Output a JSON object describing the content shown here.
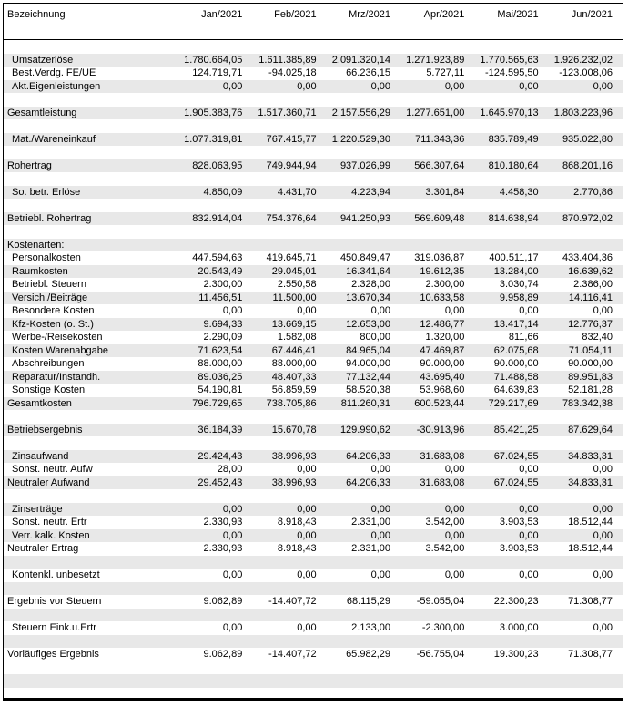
{
  "colors": {
    "row_shade": "#e8e8e8",
    "border": "#000000",
    "text": "#000000",
    "background": "#ffffff"
  },
  "header": {
    "label": "Bezeichnung",
    "months": [
      "Jan/2021",
      "Feb/2021",
      "Mrz/2021",
      "Apr/2021",
      "Mai/2021",
      "Jun/2021"
    ]
  },
  "rows": [
    {
      "blank": true,
      "shaded": false
    },
    {
      "label": "Umsatzerlöse",
      "indent": true,
      "shaded": true,
      "values": [
        "1.780.664,05",
        "1.611.385,89",
        "2.091.320,14",
        "1.271.923,89",
        "1.770.565,63",
        "1.926.232,02"
      ]
    },
    {
      "label": "Best.Verdg. FE/UE",
      "indent": true,
      "shaded": false,
      "values": [
        "124.719,71",
        "-94.025,18",
        "66.236,15",
        "5.727,11",
        "-124.595,50",
        "-123.008,06"
      ]
    },
    {
      "label": "Akt.Eigenleistungen",
      "indent": true,
      "shaded": true,
      "values": [
        "0,00",
        "0,00",
        "0,00",
        "0,00",
        "0,00",
        "0,00"
      ]
    },
    {
      "blank": true,
      "shaded": false
    },
    {
      "label": "Gesamtleistung",
      "indent": false,
      "shaded": true,
      "values": [
        "1.905.383,76",
        "1.517.360,71",
        "2.157.556,29",
        "1.277.651,00",
        "1.645.970,13",
        "1.803.223,96"
      ]
    },
    {
      "blank": true,
      "shaded": false
    },
    {
      "label": "Mat./Wareneinkauf",
      "indent": true,
      "shaded": true,
      "values": [
        "1.077.319,81",
        "767.415,77",
        "1.220.529,30",
        "711.343,36",
        "835.789,49",
        "935.022,80"
      ]
    },
    {
      "blank": true,
      "shaded": false
    },
    {
      "label": "Rohertrag",
      "indent": false,
      "shaded": true,
      "values": [
        "828.063,95",
        "749.944,94",
        "937.026,99",
        "566.307,64",
        "810.180,64",
        "868.201,16"
      ]
    },
    {
      "blank": true,
      "shaded": false
    },
    {
      "label": "So. betr. Erlöse",
      "indent": true,
      "shaded": true,
      "values": [
        "4.850,09",
        "4.431,70",
        "4.223,94",
        "3.301,84",
        "4.458,30",
        "2.770,86"
      ]
    },
    {
      "blank": true,
      "shaded": false
    },
    {
      "label": "Betriebl. Rohertrag",
      "indent": false,
      "shaded": true,
      "values": [
        "832.914,04",
        "754.376,64",
        "941.250,93",
        "569.609,48",
        "814.638,94",
        "870.972,02"
      ]
    },
    {
      "blank": true,
      "shaded": false
    },
    {
      "label": "Kostenarten:",
      "indent": false,
      "shaded": true,
      "values": null
    },
    {
      "label": "Personalkosten",
      "indent": true,
      "shaded": false,
      "values": [
        "447.594,63",
        "419.645,71",
        "450.849,47",
        "319.036,87",
        "400.511,17",
        "433.404,36"
      ]
    },
    {
      "label": "Raumkosten",
      "indent": true,
      "shaded": true,
      "values": [
        "20.543,49",
        "29.045,01",
        "16.341,64",
        "19.612,35",
        "13.284,00",
        "16.639,62"
      ]
    },
    {
      "label": "Betriebl. Steuern",
      "indent": true,
      "shaded": false,
      "values": [
        "2.300,00",
        "2.550,58",
        "2.328,00",
        "2.300,00",
        "3.030,74",
        "2.386,00"
      ]
    },
    {
      "label": "Versich./Beiträge",
      "indent": true,
      "shaded": true,
      "values": [
        "11.456,51",
        "11.500,00",
        "13.670,34",
        "10.633,58",
        "9.958,89",
        "14.116,41"
      ]
    },
    {
      "label": "Besondere Kosten",
      "indent": true,
      "shaded": false,
      "values": [
        "0,00",
        "0,00",
        "0,00",
        "0,00",
        "0,00",
        "0,00"
      ]
    },
    {
      "label": "Kfz-Kosten (o. St.)",
      "indent": true,
      "shaded": true,
      "values": [
        "9.694,33",
        "13.669,15",
        "12.653,00",
        "12.486,77",
        "13.417,14",
        "12.776,37"
      ]
    },
    {
      "label": "Werbe-/Reisekosten",
      "indent": true,
      "shaded": false,
      "values": [
        "2.290,09",
        "1.582,08",
        "800,00",
        "1.320,00",
        "811,66",
        "832,40"
      ]
    },
    {
      "label": "Kosten Warenabgabe",
      "indent": true,
      "shaded": true,
      "values": [
        "71.623,54",
        "67.446,41",
        "84.965,04",
        "47.469,87",
        "62.075,68",
        "71.054,11"
      ]
    },
    {
      "label": "Abschreibungen",
      "indent": true,
      "shaded": false,
      "values": [
        "88.000,00",
        "88.000,00",
        "94.000,00",
        "90.000,00",
        "90.000,00",
        "90.000,00"
      ]
    },
    {
      "label": "Reparatur/Instandh.",
      "indent": true,
      "shaded": true,
      "values": [
        "89.036,25",
        "48.407,33",
        "77.132,44",
        "43.695,40",
        "71.488,58",
        "89.951,83"
      ]
    },
    {
      "label": "Sonstige Kosten",
      "indent": true,
      "shaded": false,
      "values": [
        "54.190,81",
        "56.859,59",
        "58.520,38",
        "53.968,60",
        "64.639,83",
        "52.181,28"
      ]
    },
    {
      "label": "Gesamtkosten",
      "indent": false,
      "shaded": true,
      "values": [
        "796.729,65",
        "738.705,86",
        "811.260,31",
        "600.523,44",
        "729.217,69",
        "783.342,38"
      ]
    },
    {
      "blank": true,
      "shaded": false
    },
    {
      "label": "Betriebsergebnis",
      "indent": false,
      "shaded": true,
      "values": [
        "36.184,39",
        "15.670,78",
        "129.990,62",
        "-30.913,96",
        "85.421,25",
        "87.629,64"
      ]
    },
    {
      "blank": true,
      "shaded": false
    },
    {
      "label": "Zinsaufwand",
      "indent": true,
      "shaded": true,
      "values": [
        "29.424,43",
        "38.996,93",
        "64.206,33",
        "31.683,08",
        "67.024,55",
        "34.833,31"
      ]
    },
    {
      "label": "Sonst. neutr. Aufw",
      "indent": true,
      "shaded": false,
      "values": [
        "28,00",
        "0,00",
        "0,00",
        "0,00",
        "0,00",
        "0,00"
      ]
    },
    {
      "label": "Neutraler Aufwand",
      "indent": false,
      "shaded": true,
      "values": [
        "29.452,43",
        "38.996,93",
        "64.206,33",
        "31.683,08",
        "67.024,55",
        "34.833,31"
      ]
    },
    {
      "blank": true,
      "shaded": false
    },
    {
      "label": "Zinserträge",
      "indent": true,
      "shaded": true,
      "values": [
        "0,00",
        "0,00",
        "0,00",
        "0,00",
        "0,00",
        "0,00"
      ]
    },
    {
      "label": "Sonst. neutr. Ertr",
      "indent": true,
      "shaded": false,
      "values": [
        "2.330,93",
        "8.918,43",
        "2.331,00",
        "3.542,00",
        "3.903,53",
        "18.512,44"
      ]
    },
    {
      "label": "Verr. kalk. Kosten",
      "indent": true,
      "shaded": true,
      "values": [
        "0,00",
        "0,00",
        "0,00",
        "0,00",
        "0,00",
        "0,00"
      ]
    },
    {
      "label": "Neutraler Ertrag",
      "indent": false,
      "shaded": false,
      "values": [
        "2.330,93",
        "8.918,43",
        "2.331,00",
        "3.542,00",
        "3.903,53",
        "18.512,44"
      ]
    },
    {
      "blank": true,
      "shaded": true
    },
    {
      "label": "Kontenkl. unbesetzt",
      "indent": true,
      "shaded": false,
      "values": [
        "0,00",
        "0,00",
        "0,00",
        "0,00",
        "0,00",
        "0,00"
      ]
    },
    {
      "blank": true,
      "shaded": true
    },
    {
      "label": "Ergebnis vor Steuern",
      "indent": false,
      "shaded": false,
      "values": [
        "9.062,89",
        "-14.407,72",
        "68.115,29",
        "-59.055,04",
        "22.300,23",
        "71.308,77"
      ]
    },
    {
      "blank": true,
      "shaded": true
    },
    {
      "label": "Steuern Eink.u.Ertr",
      "indent": true,
      "shaded": false,
      "values": [
        "0,00",
        "0,00",
        "2.133,00",
        "-2.300,00",
        "3.000,00",
        "0,00"
      ]
    },
    {
      "blank": true,
      "shaded": true
    },
    {
      "label": "Vorläufiges Ergebnis",
      "indent": false,
      "shaded": false,
      "values": [
        "9.062,89",
        "-14.407,72",
        "65.982,29",
        "-56.755,04",
        "19.300,23",
        "71.308,77"
      ]
    },
    {
      "blank": true,
      "shaded": false
    },
    {
      "blank": true,
      "shaded": true
    },
    {
      "blank": true,
      "shaded": false
    }
  ]
}
